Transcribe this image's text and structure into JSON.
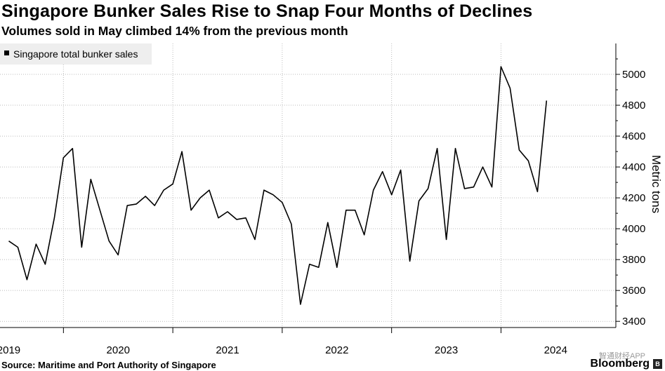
{
  "header": {
    "title": "Singapore Bunker Sales Rise to Snap Four Months of Declines",
    "subtitle": "Volumes sold in May climbed 14% from the previous month"
  },
  "footer": {
    "source": "Source: Maritime and Port Authority of Singapore",
    "brand": "Bloomberg",
    "watermark": "智通财经APP"
  },
  "colors": {
    "line": "#000000",
    "grid": "#bbbbbb",
    "legend_bg": "#eeeeee"
  },
  "chart_data": {
    "type": "line",
    "title": "Singapore Bunker Sales Rise to Snap Four Months of Declines",
    "ylabel": "Metric tons",
    "xlabel": "",
    "ylim": [
      3360,
      5200
    ],
    "yticks": [
      3400,
      3600,
      3800,
      4000,
      4200,
      4400,
      4600,
      4800,
      5000
    ],
    "xlim": [
      2018.92,
      2024.55
    ],
    "year_ticks": [
      2019,
      2020,
      2021,
      2022,
      2023,
      2024
    ],
    "x_gridlines": [
      2019.5,
      2020.5,
      2021.5,
      2022.5,
      2023.5
    ],
    "grid": true,
    "legend": {
      "position": "top-left",
      "entries": [
        "Singapore total bunker sales"
      ]
    },
    "series": [
      {
        "name": "Singapore total bunker sales",
        "start": "2019-01",
        "values": [
          3920,
          3880,
          3670,
          3900,
          3770,
          4070,
          4460,
          4520,
          3880,
          4320,
          4120,
          3920,
          3830,
          4150,
          4160,
          4210,
          4150,
          4250,
          4290,
          4500,
          4120,
          4200,
          4250,
          4070,
          4110,
          4060,
          4070,
          3930,
          4250,
          4220,
          4170,
          4030,
          3510,
          3770,
          3750,
          4040,
          3750,
          4120,
          4120,
          3960,
          4250,
          4370,
          4220,
          4380,
          3790,
          4180,
          4260,
          4520,
          3930,
          4520,
          4260,
          4270,
          4400,
          4270,
          5050,
          4910,
          4510,
          4440,
          4240,
          4830
        ]
      }
    ]
  }
}
